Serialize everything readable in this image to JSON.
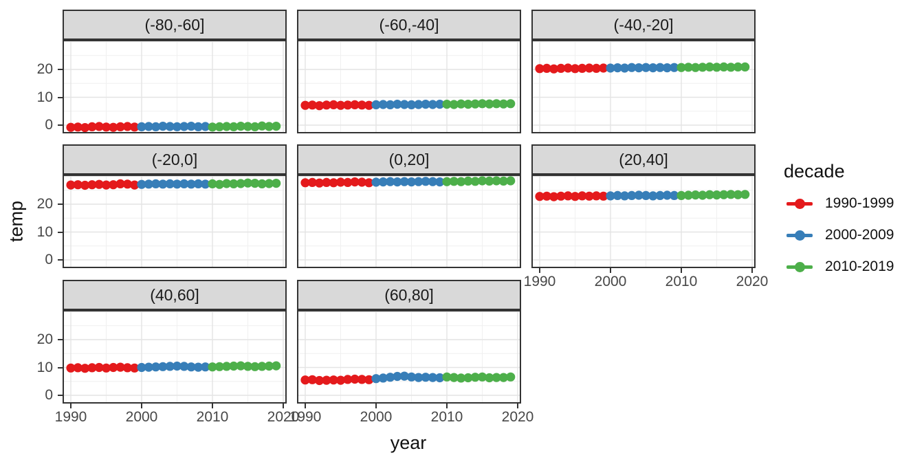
{
  "figure": {
    "y_axis_title": "temp",
    "x_axis_title": "year",
    "y_ticks": [
      0,
      10,
      20
    ],
    "x_ticks": [
      1990,
      2000,
      2010,
      2020
    ],
    "colors": {
      "strip_background": "#d9d9d9",
      "panel_border": "#333333",
      "grid_major": "#e4e4e4",
      "grid_minor": "#efefef",
      "tick_label": "#474747"
    }
  },
  "legend": {
    "title": "decade",
    "entries": [
      {
        "label": "1990-1999",
        "color": "#e41a1c"
      },
      {
        "label": "2000-2009",
        "color": "#377eb8"
      },
      {
        "label": "2010-2019",
        "color": "#4daf4a"
      }
    ]
  },
  "chart_data": {
    "type": "scatter",
    "title": "",
    "xlabel": "year",
    "ylabel": "temp",
    "x_range": [
      1988.8,
      2021.2
    ],
    "y_range": [
      -3,
      30.6
    ],
    "grid": true,
    "legend_position": "right",
    "color_by": "decade",
    "decades": [
      {
        "name": "1990-1999",
        "start": 1990,
        "end": 1999,
        "color": "#e41a1c"
      },
      {
        "name": "2000-2009",
        "start": 2000,
        "end": 2009,
        "color": "#377eb8"
      },
      {
        "name": "2010-2019",
        "start": 2010,
        "end": 2019,
        "color": "#4daf4a"
      }
    ],
    "years": [
      1990,
      1991,
      1992,
      1993,
      1994,
      1995,
      1996,
      1997,
      1998,
      1999,
      2000,
      2001,
      2002,
      2003,
      2004,
      2005,
      2006,
      2007,
      2008,
      2009,
      2010,
      2011,
      2012,
      2013,
      2014,
      2015,
      2016,
      2017,
      2018,
      2019
    ],
    "facets": [
      {
        "label": "(-80,-60]",
        "row": 0,
        "col": 0,
        "show_y_axis": true,
        "show_x_axis": false,
        "values": [
          -0.8,
          -0.7,
          -0.9,
          -0.6,
          -0.5,
          -0.7,
          -0.8,
          -0.6,
          -0.5,
          -0.7,
          -0.6,
          -0.5,
          -0.6,
          -0.4,
          -0.5,
          -0.6,
          -0.5,
          -0.4,
          -0.6,
          -0.5,
          -0.7,
          -0.6,
          -0.5,
          -0.6,
          -0.4,
          -0.5,
          -0.6,
          -0.3,
          -0.5,
          -0.4
        ]
      },
      {
        "label": "(-60,-40]",
        "row": 0,
        "col": 1,
        "show_y_axis": false,
        "show_x_axis": false,
        "values": [
          7.1,
          7.2,
          7.0,
          7.2,
          7.3,
          7.1,
          7.2,
          7.3,
          7.2,
          7.1,
          7.3,
          7.4,
          7.3,
          7.5,
          7.4,
          7.3,
          7.4,
          7.5,
          7.4,
          7.5,
          7.5,
          7.4,
          7.6,
          7.5,
          7.6,
          7.7,
          7.6,
          7.7,
          7.6,
          7.7
        ]
      },
      {
        "label": "(-40,-20]",
        "row": 0,
        "col": 2,
        "show_y_axis": false,
        "show_x_axis": false,
        "values": [
          20.3,
          20.4,
          20.2,
          20.4,
          20.5,
          20.3,
          20.4,
          20.5,
          20.4,
          20.5,
          20.5,
          20.6,
          20.5,
          20.7,
          20.6,
          20.7,
          20.6,
          20.7,
          20.6,
          20.7,
          20.7,
          20.8,
          20.7,
          20.8,
          20.9,
          20.8,
          20.9,
          20.8,
          20.9,
          20.9
        ]
      },
      {
        "label": "(-20,0]",
        "row": 1,
        "col": 0,
        "show_y_axis": true,
        "show_x_axis": false,
        "values": [
          26.9,
          27.0,
          26.8,
          27.0,
          27.1,
          26.9,
          27.0,
          27.3,
          27.2,
          26.9,
          27.1,
          27.2,
          27.3,
          27.2,
          27.3,
          27.2,
          27.3,
          27.2,
          27.3,
          27.2,
          27.3,
          27.1,
          27.4,
          27.3,
          27.4,
          27.6,
          27.5,
          27.3,
          27.4,
          27.5
        ]
      },
      {
        "label": "(0,20]",
        "row": 1,
        "col": 1,
        "show_y_axis": false,
        "show_x_axis": false,
        "values": [
          27.7,
          27.8,
          27.6,
          27.8,
          27.7,
          27.9,
          27.8,
          28.0,
          27.9,
          27.7,
          27.9,
          28.0,
          28.1,
          28.0,
          28.1,
          28.0,
          28.1,
          28.2,
          28.1,
          28.0,
          28.1,
          28.2,
          28.1,
          28.3,
          28.2,
          28.4,
          28.3,
          28.4,
          28.3,
          28.4
        ]
      },
      {
        "label": "(20,40]",
        "row": 1,
        "col": 2,
        "show_y_axis": false,
        "show_x_axis": true,
        "values": [
          22.8,
          22.9,
          22.7,
          22.9,
          23.0,
          22.8,
          23.0,
          22.9,
          23.0,
          22.9,
          23.0,
          23.1,
          23.0,
          23.1,
          23.2,
          23.1,
          23.0,
          23.1,
          23.2,
          23.1,
          23.1,
          23.2,
          23.3,
          23.2,
          23.4,
          23.3,
          23.4,
          23.5,
          23.4,
          23.5
        ]
      },
      {
        "label": "(40,60]",
        "row": 2,
        "col": 0,
        "show_y_axis": true,
        "show_x_axis": true,
        "values": [
          9.8,
          9.9,
          9.7,
          9.9,
          10.0,
          9.8,
          10.0,
          10.1,
          9.9,
          9.8,
          10.0,
          10.1,
          10.2,
          10.3,
          10.4,
          10.5,
          10.4,
          10.2,
          10.1,
          10.2,
          10.2,
          10.3,
          10.4,
          10.5,
          10.6,
          10.4,
          10.3,
          10.4,
          10.5,
          10.6
        ]
      },
      {
        "label": "(60,80]",
        "row": 2,
        "col": 1,
        "show_y_axis": false,
        "show_x_axis": true,
        "values": [
          5.5,
          5.6,
          5.3,
          5.4,
          5.5,
          5.4,
          5.7,
          5.8,
          5.7,
          5.6,
          6.0,
          6.2,
          6.5,
          6.8,
          6.9,
          6.6,
          6.4,
          6.5,
          6.4,
          6.3,
          6.6,
          6.4,
          6.2,
          6.3,
          6.5,
          6.6,
          6.3,
          6.4,
          6.4,
          6.6
        ]
      }
    ]
  }
}
